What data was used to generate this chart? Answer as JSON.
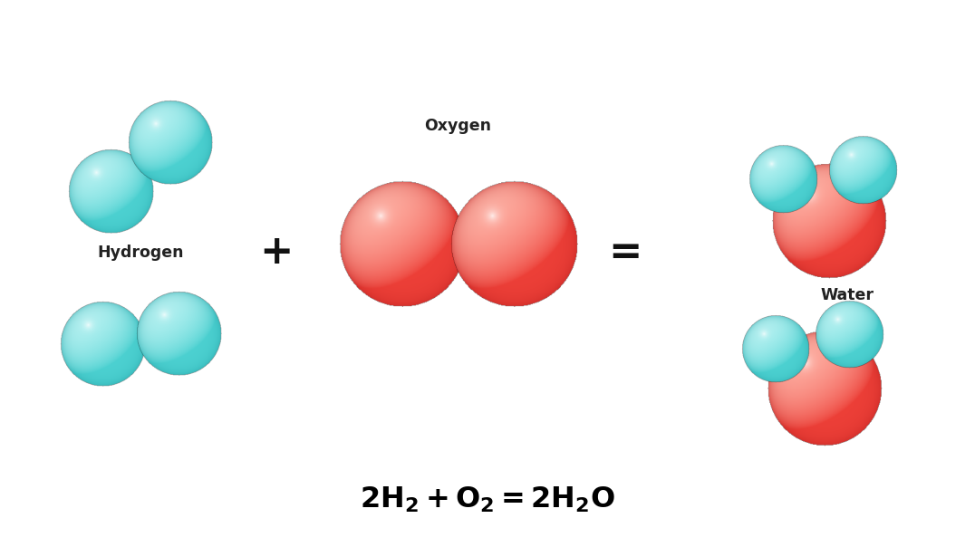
{
  "background_color": "#ffffff",
  "hydrogen_color_base": [
    0.3,
    0.82,
    0.82
  ],
  "hydrogen_color_light": [
    0.72,
    0.95,
    0.95
  ],
  "hydrogen_color_dark": [
    0.1,
    0.6,
    0.62
  ],
  "oxygen_color_base": [
    0.93,
    0.25,
    0.22
  ],
  "oxygen_color_light": [
    1.0,
    0.7,
    0.65
  ],
  "oxygen_color_dark": [
    0.7,
    0.1,
    0.1
  ],
  "label_hydrogen": "Hydrogen",
  "label_oxygen": "Oxygen",
  "label_water": "Water",
  "plus_sign": "+",
  "equals_sign": "=",
  "figsize": [
    10.76,
    6.04
  ],
  "dpi": 100
}
